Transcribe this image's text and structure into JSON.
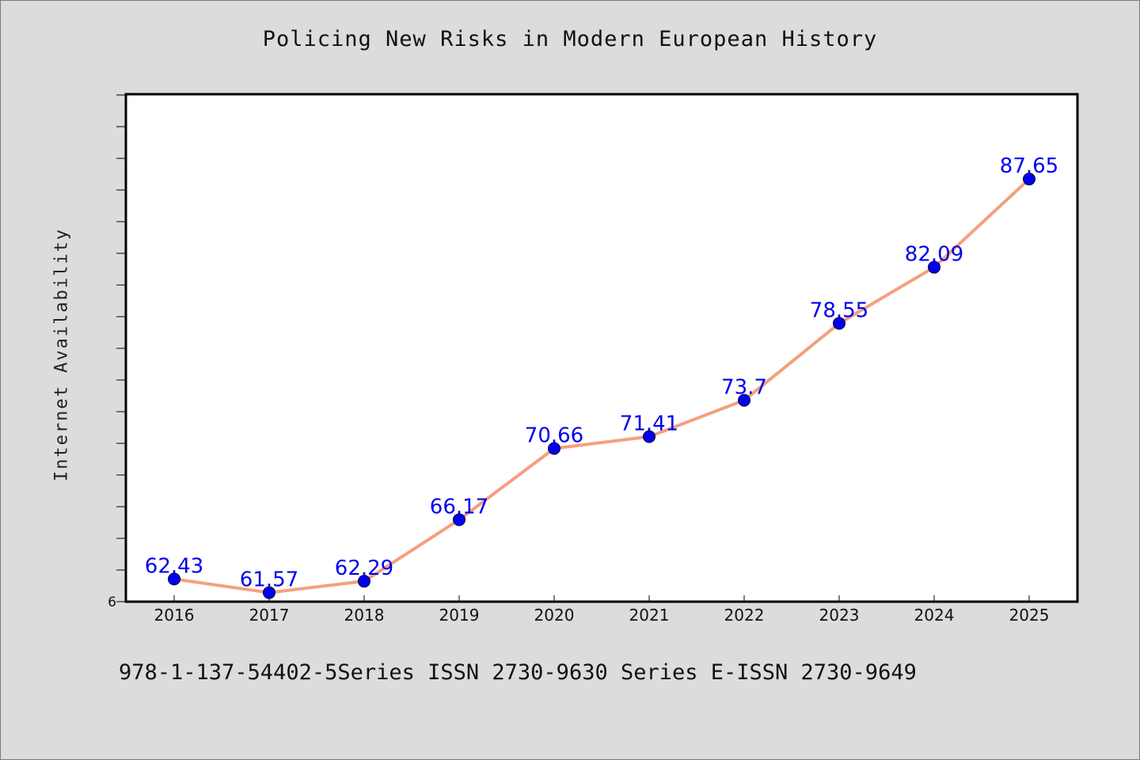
{
  "chart_data": {
    "type": "line",
    "title": "Policing New Risks in Modern European History",
    "xlabel": "",
    "ylabel": "Internet Availability",
    "x": [
      "2016",
      "2017",
      "2018",
      "2019",
      "2020",
      "2021",
      "2022",
      "2023",
      "2024",
      "2025"
    ],
    "series": [
      {
        "values": [
          62.43,
          61.57,
          62.29,
          66.17,
          70.66,
          71.41,
          73.7,
          78.55,
          82.09,
          87.65
        ],
        "labels": [
          "62.43",
          "61.57",
          "62.29",
          "66.17",
          "70.66",
          "71.41",
          "73.7",
          "78.55",
          "82.09",
          "87.65"
        ]
      }
    ],
    "y_tick_label": "6",
    "ylim": [
      61.0,
      93.0
    ],
    "grid": false,
    "legend": "none",
    "colors": {
      "line": "#f4a07c",
      "marker": "#0000ee",
      "label": "#0000ee",
      "background": "#dcdcdc",
      "plot_background": "#ffffff"
    }
  },
  "footer_text": "978-1-137-54402-5Series ISSN 2730-9630 Series E-ISSN 2730-9649"
}
